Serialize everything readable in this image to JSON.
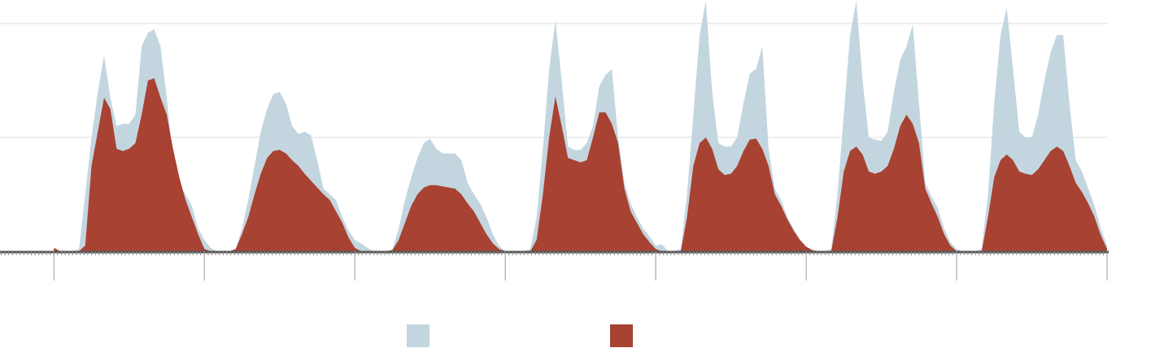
{
  "chart_data": {
    "type": "area",
    "x": [
      0,
      1,
      2,
      3,
      4,
      5,
      6,
      7,
      8,
      9,
      10,
      11,
      12,
      13,
      14,
      15,
      16,
      17,
      18,
      19,
      20,
      21,
      22,
      23,
      24,
      25,
      26,
      27,
      28,
      29,
      30,
      31,
      32,
      33,
      34,
      35,
      36,
      37,
      38,
      39,
      40,
      41,
      42,
      43,
      44,
      45,
      46,
      47,
      48,
      49,
      50,
      51,
      52,
      53,
      54,
      55,
      56,
      57,
      58,
      59,
      60,
      61,
      62,
      63,
      64,
      65,
      66,
      67,
      68,
      69,
      70,
      71,
      72,
      73,
      74,
      75,
      76,
      77,
      78,
      79,
      80,
      81,
      82,
      83,
      84,
      85,
      86,
      87,
      88,
      89,
      90,
      91,
      92,
      93,
      94,
      95,
      96,
      97,
      98,
      99,
      100,
      101,
      102,
      103,
      104,
      105,
      106,
      107,
      108,
      109,
      110,
      111,
      112,
      113,
      114,
      115,
      116,
      117,
      118,
      119,
      120,
      121,
      122,
      123,
      124,
      125,
      126,
      127,
      128,
      129,
      130,
      131,
      132,
      133,
      134,
      135,
      136,
      137,
      138,
      139,
      140,
      141,
      142,
      143,
      144,
      145,
      146,
      147,
      148,
      149,
      150,
      151,
      152,
      153,
      154,
      155,
      156,
      157,
      158,
      159,
      160,
      161,
      162,
      163,
      164,
      165,
      166,
      167,
      168
    ],
    "series": [
      {
        "color": "#c3d6e0",
        "values": [
          0,
          0,
          0,
          0,
          0.02,
          0.5,
          1.0,
          1.4,
          1.72,
          1.35,
          1.1,
          1.12,
          1.12,
          1.2,
          1.8,
          1.92,
          1.95,
          1.8,
          1.35,
          0.8,
          0.58,
          0.5,
          0.4,
          0.2,
          0.1,
          0.03,
          0,
          0,
          0,
          0.02,
          0.2,
          0.45,
          0.75,
          1.05,
          1.25,
          1.38,
          1.4,
          1.3,
          1.1,
          1.03,
          1.05,
          1.02,
          0.8,
          0.55,
          0.5,
          0.45,
          0.3,
          0.18,
          0.1,
          0.07,
          0.03,
          0,
          0,
          0,
          0.02,
          0.2,
          0.45,
          0.65,
          0.82,
          0.95,
          0.99,
          0.9,
          0.86,
          0.86,
          0.86,
          0.8,
          0.6,
          0.5,
          0.42,
          0.3,
          0.15,
          0.05,
          0,
          0,
          0,
          0,
          0.02,
          0.3,
          0.9,
          1.6,
          2.03,
          1.5,
          0.92,
          0.89,
          0.89,
          0.95,
          1.1,
          1.45,
          1.55,
          1.6,
          1.0,
          0.6,
          0.42,
          0.3,
          0.2,
          0.13,
          0.05,
          0.06,
          0,
          0,
          0.02,
          0.5,
          1.2,
          1.9,
          2.2,
          1.4,
          0.95,
          0.92,
          0.92,
          1.0,
          1.3,
          1.56,
          1.6,
          1.8,
          0.9,
          0.55,
          0.45,
          0.3,
          0.2,
          0.1,
          0.04,
          0,
          0,
          0,
          0.02,
          0.5,
          1.2,
          1.9,
          2.2,
          1.5,
          1.0,
          0.98,
          0.97,
          1.05,
          1.4,
          1.68,
          1.8,
          1.99,
          1.3,
          0.6,
          0.48,
          0.38,
          0.2,
          0.08,
          0.02,
          0,
          0,
          0,
          0.02,
          0.5,
          1.3,
          1.9,
          2.14,
          1.6,
          1.05,
          1.0,
          1.0,
          1.2,
          1.5,
          1.75,
          1.9,
          1.9,
          1.3,
          0.8,
          0.7,
          0.55,
          0.4,
          0.2,
          0.05
        ]
      },
      {
        "color": "#a84232",
        "values": [
          0.03,
          0,
          0,
          0,
          0,
          0.05,
          0.75,
          1.05,
          1.35,
          1.25,
          0.9,
          0.88,
          0.9,
          0.95,
          1.2,
          1.5,
          1.52,
          1.35,
          1.2,
          0.9,
          0.65,
          0.45,
          0.3,
          0.15,
          0.02,
          0,
          0,
          0,
          0,
          0.02,
          0.15,
          0.3,
          0.5,
          0.68,
          0.82,
          0.88,
          0.89,
          0.86,
          0.8,
          0.75,
          0.68,
          0.62,
          0.56,
          0.5,
          0.45,
          0.35,
          0.25,
          0.12,
          0.03,
          0,
          0,
          0,
          0,
          0,
          0.01,
          0.1,
          0.25,
          0.4,
          0.5,
          0.56,
          0.58,
          0.58,
          0.57,
          0.56,
          0.55,
          0.5,
          0.42,
          0.35,
          0.25,
          0.15,
          0.07,
          0.02,
          0,
          0,
          0,
          0,
          0,
          0.1,
          0.5,
          1.0,
          1.36,
          1.1,
          0.82,
          0.8,
          0.78,
          0.8,
          1.0,
          1.22,
          1.22,
          1.12,
          0.95,
          0.55,
          0.35,
          0.25,
          0.15,
          0.08,
          0.02,
          0,
          0,
          0,
          0,
          0.3,
          0.75,
          0.95,
          1.0,
          0.9,
          0.72,
          0.67,
          0.68,
          0.75,
          0.88,
          0.98,
          0.99,
          0.9,
          0.75,
          0.5,
          0.4,
          0.28,
          0.18,
          0.1,
          0.04,
          0.01,
          0,
          0,
          0,
          0.3,
          0.7,
          0.88,
          0.92,
          0.85,
          0.7,
          0.68,
          0.7,
          0.75,
          0.9,
          1.1,
          1.2,
          1.12,
          0.95,
          0.55,
          0.42,
          0.3,
          0.15,
          0.05,
          0,
          0,
          0,
          0,
          0,
          0.3,
          0.65,
          0.8,
          0.85,
          0.8,
          0.7,
          0.68,
          0.67,
          0.72,
          0.8,
          0.88,
          0.92,
          0.88,
          0.75,
          0.6,
          0.52,
          0.42,
          0.3,
          0.14,
          0.02
        ]
      }
    ],
    "xlim": [
      -8.6,
      168
    ],
    "xticks": [
      0,
      24,
      48,
      72,
      96,
      120,
      144,
      168
    ],
    "ylim": [
      0,
      2.2
    ],
    "yticks": [
      0,
      1,
      2
    ],
    "grid": true
  }
}
